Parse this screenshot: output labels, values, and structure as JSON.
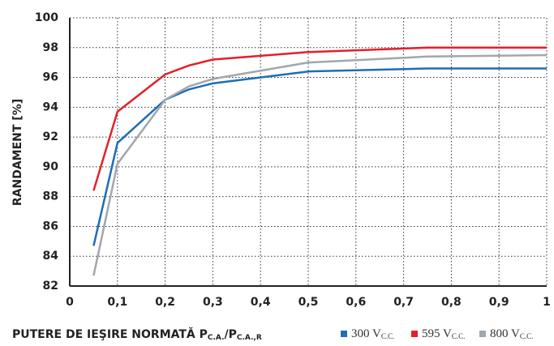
{
  "chart_data": {
    "type": "line",
    "y_label": "RANDAMENT [%]",
    "x_label": {
      "text": "PUTERE DE IEŞIRE NORMATĂ P",
      "sub1": "C.A.",
      "mid": "/P",
      "sub2": "C.A.,R"
    },
    "x": [
      0.05,
      0.1,
      0.2,
      0.25,
      0.3,
      0.5,
      0.75,
      1
    ],
    "series": [
      {
        "name": "300 V",
        "subscript": "C.C.",
        "color": "#1f6db5",
        "values": [
          84.7,
          91.6,
          94.5,
          95.2,
          95.6,
          96.4,
          96.6,
          96.6
        ]
      },
      {
        "name": "595 V",
        "subscript": "C.C.",
        "color": "#e3202a",
        "values": [
          88.4,
          93.7,
          96.2,
          96.8,
          97.2,
          97.7,
          98.0,
          98.0
        ]
      },
      {
        "name": "800 V",
        "subscript": "C.C.",
        "color": "#a0a7ad",
        "values": [
          82.7,
          90.2,
          94.5,
          95.4,
          95.9,
          97.0,
          97.4,
          97.5
        ]
      }
    ],
    "xlim": [
      0,
      1
    ],
    "xticks": [
      0,
      {
        "value": 0.1,
        "label": "0,1"
      },
      {
        "value": 0.2,
        "label": "0,2"
      },
      {
        "value": 0.3,
        "label": "0,3"
      },
      {
        "value": 0.4,
        "label": "0,4"
      },
      {
        "value": 0.5,
        "label": "0,5"
      },
      {
        "value": 0.6,
        "label": "0,6"
      },
      {
        "value": 0.7,
        "label": "0,7"
      },
      {
        "value": 0.8,
        "label": "0,8"
      },
      {
        "value": 0.9,
        "label": "0,9"
      },
      1
    ],
    "ylim": [
      82,
      100
    ],
    "yticks": [
      82,
      84,
      86,
      88,
      90,
      92,
      94,
      96,
      98,
      100
    ],
    "grid": true,
    "legend": "bottom-right"
  }
}
